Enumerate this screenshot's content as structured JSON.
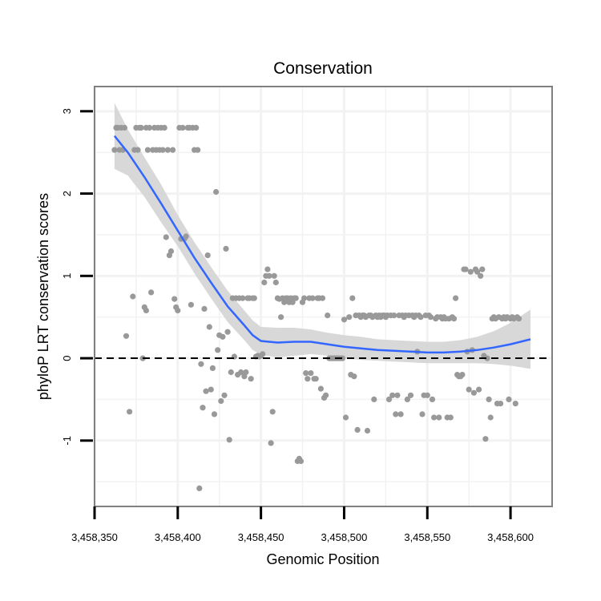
{
  "chart_data": {
    "type": "scatter",
    "title": "Conservation",
    "xlabel": "Genomic Position",
    "ylabel": "phyloP LRT conservation scores",
    "xlim": [
      3458350,
      3458625
    ],
    "ylim": [
      -1.8,
      3.3
    ],
    "x_ticks": [
      3458350,
      3458400,
      3458450,
      3458500,
      3458550,
      3458600
    ],
    "x_tick_labels": [
      "3,458,350",
      "3,458,400",
      "3,458,450",
      "3,458,500",
      "3,458,550",
      "3,458,600"
    ],
    "y_ticks": [
      -1,
      0,
      1,
      2,
      3
    ],
    "y_tick_labels": [
      "-1",
      "0",
      "1",
      "2",
      "3"
    ],
    "reference_line": {
      "y": 0,
      "style": "dashed"
    },
    "grid": true,
    "colors": {
      "points": "#999999",
      "smooth_line": "#3366ff",
      "confidence_band": "#d4d4d4",
      "panel_border": "#808080",
      "grid": "#f2f2f2"
    },
    "points": [
      [
        3458362,
        2.53
      ],
      [
        3458363,
        2.8
      ],
      [
        3458364,
        2.8
      ],
      [
        3458365,
        2.53
      ],
      [
        3458366,
        2.8
      ],
      [
        3458367,
        2.53
      ],
      [
        3458368,
        2.8
      ],
      [
        3458369,
        0.27
      ],
      [
        3458371,
        -0.65
      ],
      [
        3458373,
        0.75
      ],
      [
        3458374,
        2.53
      ],
      [
        3458375,
        2.8
      ],
      [
        3458376,
        2.53
      ],
      [
        3458377,
        2.8
      ],
      [
        3458378,
        2.8
      ],
      [
        3458379,
        0.0
      ],
      [
        3458380,
        0.62
      ],
      [
        3458381,
        2.8
      ],
      [
        3458381,
        0.58
      ],
      [
        3458382,
        2.53
      ],
      [
        3458383,
        2.8
      ],
      [
        3458384,
        0.8
      ],
      [
        3458385,
        2.53
      ],
      [
        3458386,
        2.8
      ],
      [
        3458387,
        2.53
      ],
      [
        3458388,
        2.8
      ],
      [
        3458389,
        2.53
      ],
      [
        3458390,
        2.8
      ],
      [
        3458391,
        2.53
      ],
      [
        3458392,
        2.8
      ],
      [
        3458393,
        1.47
      ],
      [
        3458394,
        2.53
      ],
      [
        3458395,
        1.25
      ],
      [
        3458396,
        1.3
      ],
      [
        3458397,
        2.53
      ],
      [
        3458398,
        0.72
      ],
      [
        3458399,
        0.62
      ],
      [
        3458400,
        0.58
      ],
      [
        3458401,
        2.8
      ],
      [
        3458402,
        1.45
      ],
      [
        3458403,
        2.8
      ],
      [
        3458404,
        1.45
      ],
      [
        3458405,
        1.48
      ],
      [
        3458406,
        2.8
      ],
      [
        3458407,
        2.8
      ],
      [
        3458408,
        0.65
      ],
      [
        3458409,
        2.8
      ],
      [
        3458410,
        2.53
      ],
      [
        3458411,
        2.8
      ],
      [
        3458412,
        2.53
      ],
      [
        3458413,
        -1.58
      ],
      [
        3458414,
        -0.07
      ],
      [
        3458415,
        -0.6
      ],
      [
        3458416,
        0.6
      ],
      [
        3458417,
        -0.4
      ],
      [
        3458418,
        1.25
      ],
      [
        3458419,
        0.38
      ],
      [
        3458420,
        -0.38
      ],
      [
        3458421,
        -0.12
      ],
      [
        3458422,
        -0.68
      ],
      [
        3458423,
        2.02
      ],
      [
        3458424,
        0.1
      ],
      [
        3458425,
        0.28
      ],
      [
        3458426,
        -0.52
      ],
      [
        3458427,
        0.26
      ],
      [
        3458428,
        -0.45
      ],
      [
        3458429,
        1.33
      ],
      [
        3458430,
        0.32
      ],
      [
        3458431,
        -0.99
      ],
      [
        3458432,
        -0.17
      ],
      [
        3458433,
        0.73
      ],
      [
        3458434,
        0.02
      ],
      [
        3458435,
        0.73
      ],
      [
        3458436,
        -0.2
      ],
      [
        3458437,
        0.73
      ],
      [
        3458438,
        -0.17
      ],
      [
        3458439,
        0.73
      ],
      [
        3458440,
        -0.22
      ],
      [
        3458441,
        -0.17
      ],
      [
        3458442,
        0.73
      ],
      [
        3458443,
        0.73
      ],
      [
        3458444,
        -0.25
      ],
      [
        3458445,
        0.73
      ],
      [
        3458446,
        0.73
      ],
      [
        3458447,
        0.02
      ],
      [
        3458448,
        0.03
      ],
      [
        3458449,
        0.02
      ],
      [
        3458450,
        0.03
      ],
      [
        3458451,
        0.05
      ],
      [
        3458452,
        0.92
      ],
      [
        3458453,
        1.0
      ],
      [
        3458454,
        1.08
      ],
      [
        3458455,
        1.0
      ],
      [
        3458456,
        -1.03
      ],
      [
        3458457,
        -0.65
      ],
      [
        3458458,
        1.0
      ],
      [
        3458459,
        0.92
      ],
      [
        3458460,
        0.73
      ],
      [
        3458461,
        0.72
      ],
      [
        3458462,
        0.5
      ],
      [
        3458463,
        0.73
      ],
      [
        3458464,
        0.68
      ],
      [
        3458465,
        0.73
      ],
      [
        3458466,
        0.73
      ],
      [
        3458467,
        0.68
      ],
      [
        3458468,
        0.73
      ],
      [
        3458469,
        0.68
      ],
      [
        3458470,
        0.73
      ],
      [
        3458471,
        0.73
      ],
      [
        3458472,
        -1.25
      ],
      [
        3458473,
        -1.22
      ],
      [
        3458474,
        -1.25
      ],
      [
        3458475,
        0.68
      ],
      [
        3458476,
        0.73
      ],
      [
        3458477,
        -0.18
      ],
      [
        3458478,
        -0.25
      ],
      [
        3458479,
        0.73
      ],
      [
        3458480,
        -0.18
      ],
      [
        3458481,
        0.73
      ],
      [
        3458482,
        -0.25
      ],
      [
        3458483,
        -0.25
      ],
      [
        3458484,
        0.73
      ],
      [
        3458485,
        0.73
      ],
      [
        3458486,
        -0.37
      ],
      [
        3458487,
        0.73
      ],
      [
        3458488,
        -0.48
      ],
      [
        3458489,
        -0.45
      ],
      [
        3458490,
        0.52
      ],
      [
        3458491,
        0.0
      ],
      [
        3458492,
        0.0
      ],
      [
        3458493,
        0.0
      ],
      [
        3458494,
        0.0
      ],
      [
        3458495,
        0.0
      ],
      [
        3458496,
        0.0
      ],
      [
        3458497,
        0.0
      ],
      [
        3458498,
        0.0
      ],
      [
        3458499,
        0.0
      ],
      [
        3458500,
        0.47
      ],
      [
        3458501,
        -0.72
      ],
      [
        3458503,
        0.5
      ],
      [
        3458504,
        -0.2
      ],
      [
        3458505,
        0.73
      ],
      [
        3458506,
        -0.22
      ],
      [
        3458507,
        0.52
      ],
      [
        3458508,
        -0.87
      ],
      [
        3458509,
        0.52
      ],
      [
        3458510,
        0.5
      ],
      [
        3458511,
        0.52
      ],
      [
        3458512,
        0.52
      ],
      [
        3458513,
        0.5
      ],
      [
        3458514,
        -0.88
      ],
      [
        3458515,
        0.52
      ],
      [
        3458516,
        0.52
      ],
      [
        3458517,
        0.5
      ],
      [
        3458518,
        -0.5
      ],
      [
        3458519,
        0.52
      ],
      [
        3458520,
        0.5
      ],
      [
        3458521,
        0.52
      ],
      [
        3458522,
        0.5
      ],
      [
        3458523,
        0.52
      ],
      [
        3458524,
        0.52
      ],
      [
        3458525,
        0.5
      ],
      [
        3458526,
        0.52
      ],
      [
        3458527,
        -0.5
      ],
      [
        3458528,
        0.52
      ],
      [
        3458529,
        -0.45
      ],
      [
        3458530,
        0.52
      ],
      [
        3458531,
        -0.68
      ],
      [
        3458532,
        -0.45
      ],
      [
        3458533,
        0.52
      ],
      [
        3458534,
        -0.68
      ],
      [
        3458535,
        0.52
      ],
      [
        3458536,
        0.5
      ],
      [
        3458537,
        0.52
      ],
      [
        3458538,
        -0.5
      ],
      [
        3458539,
        0.52
      ],
      [
        3458540,
        -0.45
      ],
      [
        3458541,
        0.52
      ],
      [
        3458542,
        0.5
      ],
      [
        3458543,
        0.52
      ],
      [
        3458544,
        0.08
      ],
      [
        3458545,
        0.52
      ],
      [
        3458546,
        0.5
      ],
      [
        3458547,
        -0.68
      ],
      [
        3458548,
        -0.45
      ],
      [
        3458549,
        0.52
      ],
      [
        3458550,
        -0.45
      ],
      [
        3458551,
        0.52
      ],
      [
        3458552,
        0.5
      ],
      [
        3458553,
        -0.5
      ],
      [
        3458554,
        -0.72
      ],
      [
        3458555,
        0.48
      ],
      [
        3458556,
        0.5
      ],
      [
        3458557,
        -0.72
      ],
      [
        3458558,
        0.5
      ],
      [
        3458559,
        0.48
      ],
      [
        3458560,
        0.5
      ],
      [
        3458561,
        0.48
      ],
      [
        3458562,
        -0.72
      ],
      [
        3458563,
        0.48
      ],
      [
        3458564,
        -0.72
      ],
      [
        3458565,
        0.5
      ],
      [
        3458566,
        0.48
      ],
      [
        3458567,
        0.73
      ],
      [
        3458568,
        -0.2
      ],
      [
        3458569,
        -0.22
      ],
      [
        3458570,
        -0.22
      ],
      [
        3458571,
        -0.2
      ],
      [
        3458572,
        1.08
      ],
      [
        3458573,
        1.08
      ],
      [
        3458574,
        0.08
      ],
      [
        3458575,
        -0.38
      ],
      [
        3458576,
        1.05
      ],
      [
        3458577,
        0.1
      ],
      [
        3458578,
        -0.42
      ],
      [
        3458579,
        1.08
      ],
      [
        3458580,
        1.05
      ],
      [
        3458581,
        -0.38
      ],
      [
        3458582,
        1.0
      ],
      [
        3458583,
        1.08
      ],
      [
        3458584,
        0.03
      ],
      [
        3458585,
        -0.98
      ],
      [
        3458586,
        0.0
      ],
      [
        3458587,
        -0.5
      ],
      [
        3458588,
        -0.72
      ],
      [
        3458589,
        0.48
      ],
      [
        3458590,
        0.5
      ],
      [
        3458591,
        0.48
      ],
      [
        3458592,
        -0.55
      ],
      [
        3458593,
        0.5
      ],
      [
        3458594,
        -0.55
      ],
      [
        3458595,
        0.48
      ],
      [
        3458596,
        0.5
      ],
      [
        3458597,
        0.48
      ],
      [
        3458598,
        0.5
      ],
      [
        3458599,
        -0.5
      ],
      [
        3458600,
        0.48
      ],
      [
        3458601,
        0.5
      ],
      [
        3458602,
        0.48
      ],
      [
        3458603,
        -0.55
      ],
      [
        3458604,
        0.5
      ],
      [
        3458605,
        0.48
      ]
    ],
    "smooth": {
      "x": [
        3458362,
        3458370,
        3458380,
        3458390,
        3458400,
        3458410,
        3458420,
        3458430,
        3458440,
        3458445,
        3458450,
        3458460,
        3458470,
        3458480,
        3458490,
        3458500,
        3458510,
        3458520,
        3458530,
        3458540,
        3458550,
        3458560,
        3458570,
        3458580,
        3458590,
        3458600,
        3458612
      ],
      "y": [
        2.7,
        2.5,
        2.2,
        1.88,
        1.55,
        1.22,
        0.92,
        0.63,
        0.4,
        0.28,
        0.21,
        0.19,
        0.2,
        0.2,
        0.17,
        0.14,
        0.12,
        0.1,
        0.09,
        0.08,
        0.07,
        0.07,
        0.08,
        0.1,
        0.13,
        0.17,
        0.23
      ],
      "lower": [
        2.3,
        2.22,
        1.96,
        1.65,
        1.36,
        1.03,
        0.73,
        0.44,
        0.22,
        0.1,
        0.04,
        0.01,
        0.03,
        0.05,
        0.03,
        0.0,
        -0.02,
        -0.03,
        -0.04,
        -0.05,
        -0.06,
        -0.06,
        -0.06,
        -0.06,
        -0.07,
        -0.09,
        -0.13
      ],
      "upper": [
        3.1,
        2.78,
        2.44,
        2.11,
        1.74,
        1.41,
        1.11,
        0.82,
        0.58,
        0.46,
        0.38,
        0.37,
        0.37,
        0.35,
        0.31,
        0.28,
        0.26,
        0.23,
        0.22,
        0.21,
        0.2,
        0.2,
        0.22,
        0.26,
        0.33,
        0.43,
        0.59
      ]
    }
  }
}
